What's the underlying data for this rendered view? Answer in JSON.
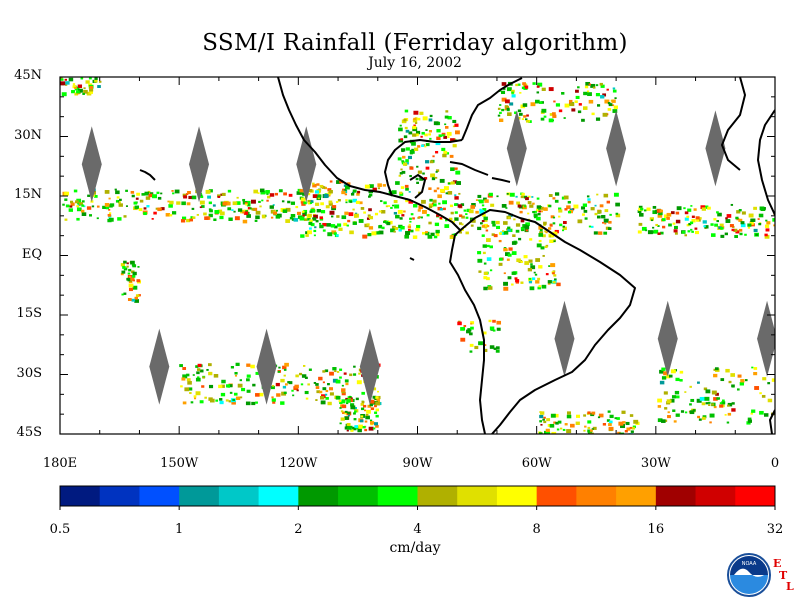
{
  "header": {
    "title": "SSM/I Rainfall (Ferriday algorithm)",
    "date": "July 16, 2002"
  },
  "map": {
    "lat_labels": [
      "45N",
      "30N",
      "15N",
      "EQ",
      "15S",
      "30S",
      "45S"
    ],
    "lon_labels": [
      "180E",
      "150W",
      "120W",
      "90W",
      "60W",
      "30W",
      "0"
    ],
    "land_color": "#ffffff",
    "coast_color": "#000000",
    "no_data_color": "#6a6a6a"
  },
  "colorbar": {
    "units": "cm/day",
    "tick_labels": [
      "0.5",
      "1",
      "2",
      "4",
      "8",
      "16",
      "32"
    ],
    "colors": [
      "#001a80",
      "#0033c0",
      "#0050ff",
      "#009999",
      "#00c8c8",
      "#00ffff",
      "#009900",
      "#00c000",
      "#00ff00",
      "#b0b000",
      "#e0e000",
      "#ffff00",
      "#ff5000",
      "#ff8000",
      "#ffa000",
      "#a00000",
      "#d00000",
      "#ff0000"
    ]
  },
  "logo": {
    "noaa_text": "NOAA",
    "etl_letters": [
      "E",
      "T",
      "L"
    ]
  }
}
